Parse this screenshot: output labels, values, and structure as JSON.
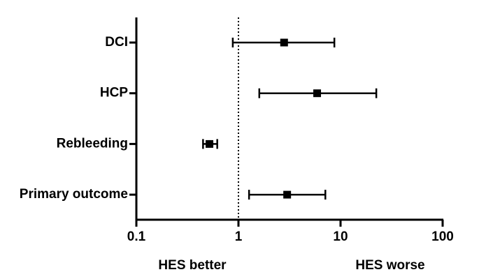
{
  "chart_data": {
    "type": "forest",
    "categories": [
      "DCI",
      "HCP",
      "Rebleeding",
      "Primary outcome"
    ],
    "values": [
      2.8,
      5.9,
      0.52,
      3.0
    ],
    "lower": [
      0.88,
      1.6,
      0.45,
      1.27
    ],
    "upper": [
      8.7,
      22.4,
      0.62,
      7.1
    ],
    "color": "#000000",
    "xlim": [
      0.1,
      100
    ],
    "xticks": [
      0.1,
      1,
      10,
      100
    ],
    "log_x": true,
    "reference_line": 1,
    "annotations": [
      "HES better",
      "HES worse"
    ]
  }
}
